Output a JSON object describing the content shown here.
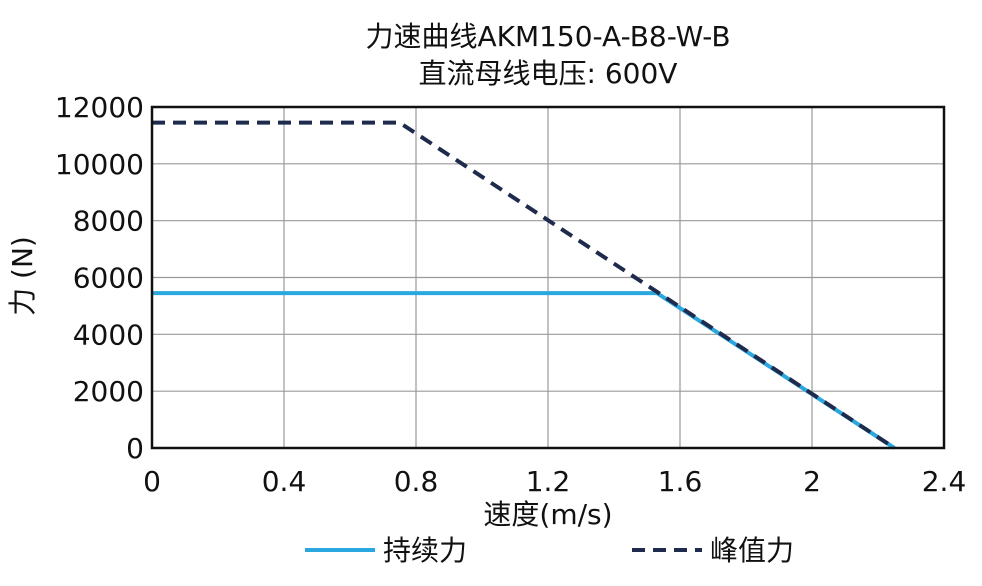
{
  "chart_data": {
    "type": "line",
    "title": "力速曲线AKM150-A-B8-W-B",
    "subtitle": "直流母线电压: 600V",
    "xlabel": "速度(m/s)",
    "ylabel": "力 (N)",
    "xlim": [
      0,
      2.4
    ],
    "ylim": [
      0,
      12000
    ],
    "xticks": [
      {
        "value": 0,
        "label": "0"
      },
      {
        "value": 0.4,
        "label": "0.4"
      },
      {
        "value": 0.8,
        "label": "0.8"
      },
      {
        "value": 1.2,
        "label": "1.2"
      },
      {
        "value": 1.6,
        "label": "1.6"
      },
      {
        "value": 2,
        "label": "2"
      },
      {
        "value": 2.4,
        "label": "2.4"
      }
    ],
    "yticks": [
      {
        "value": 0,
        "label": "0"
      },
      {
        "value": 2000,
        "label": "2000"
      },
      {
        "value": 4000,
        "label": "4000"
      },
      {
        "value": 6000,
        "label": "6000"
      },
      {
        "value": 8000,
        "label": "8000"
      },
      {
        "value": 10000,
        "label": "10000"
      },
      {
        "value": 12000,
        "label": "12000"
      }
    ],
    "grid": true,
    "legend_position": "bottom",
    "series": [
      {
        "name": "持续力",
        "color": "#2aa7df",
        "dash": "solid",
        "points": [
          [
            0,
            5450
          ],
          [
            1.53,
            5450
          ],
          [
            2.25,
            0
          ]
        ]
      },
      {
        "name": "峰值力",
        "color": "#1e2b4d",
        "dash": "dashed",
        "points": [
          [
            0,
            11450
          ],
          [
            0.75,
            11450
          ],
          [
            2.25,
            0
          ]
        ]
      }
    ]
  }
}
